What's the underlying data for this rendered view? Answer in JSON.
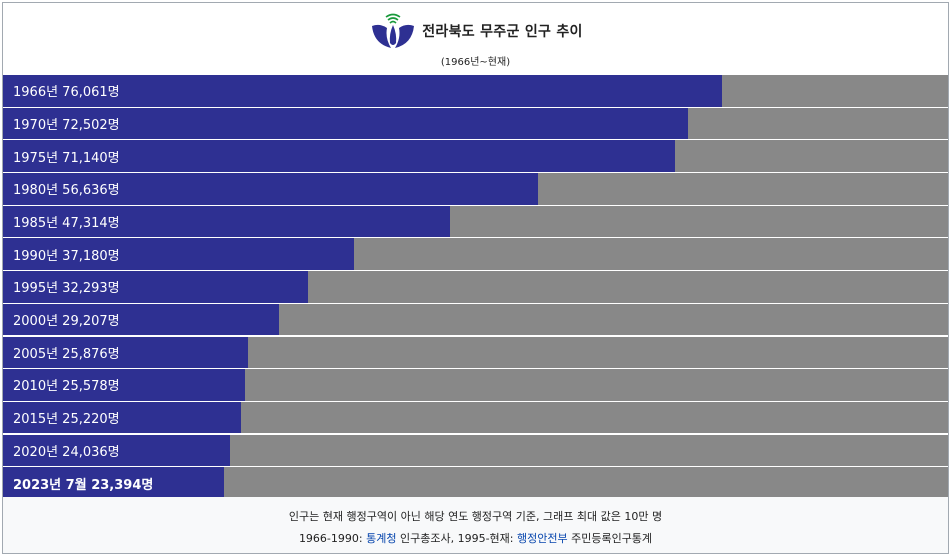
{
  "header": {
    "title": "전라북도 무주군 인구 추이",
    "subtitle": "(1966년~현재)"
  },
  "chart_data": {
    "type": "bar",
    "orientation": "horizontal",
    "title": "전라북도 무주군 인구 추이",
    "subtitle": "(1966년~현재)",
    "xlim": [
      0,
      100000
    ],
    "bar_color": "#2e3092",
    "track_color": "#888888",
    "rows": [
      {
        "label": "1966년 76,061명",
        "value": 76061
      },
      {
        "label": "1970년 72,502명",
        "value": 72502
      },
      {
        "label": "1975년 71,140명",
        "value": 71140
      },
      {
        "label": "1980년 56,636명",
        "value": 56636
      },
      {
        "label": "1985년 47,314명",
        "value": 47314
      },
      {
        "label": "1990년 37,180명",
        "value": 37180
      },
      {
        "label": "1995년 32,293명",
        "value": 32293
      },
      {
        "label": "2000년 29,207명",
        "value": 29207
      },
      {
        "label": "2005년 25,876명",
        "value": 25876
      },
      {
        "label": "2010년 25,578명",
        "value": 25578
      },
      {
        "label": "2015년 25,220명",
        "value": 25220
      },
      {
        "label": "2020년 24,036명",
        "value": 24036
      },
      {
        "label": "2023년 7월 23,394명",
        "value": 23394,
        "bold": true
      }
    ]
  },
  "footer": {
    "note": "인구는 현재 행정구역이 아닌 해당 연도 행정구역 기준, 그래프 최대 값은 10만 명",
    "source_a_prefix": "1966-1990: ",
    "source_a_link": "통계청",
    "source_a_suffix": " 인구총조사, 1995-현재: ",
    "source_b_link": "행정안전부",
    "source_b_suffix": " 주민등록인구통계"
  },
  "colors": {
    "bar": "#2e3092",
    "track": "#888888",
    "link": "#0645ad",
    "emblem_blue": "#2e3092",
    "emblem_green": "#1a9a3c"
  }
}
